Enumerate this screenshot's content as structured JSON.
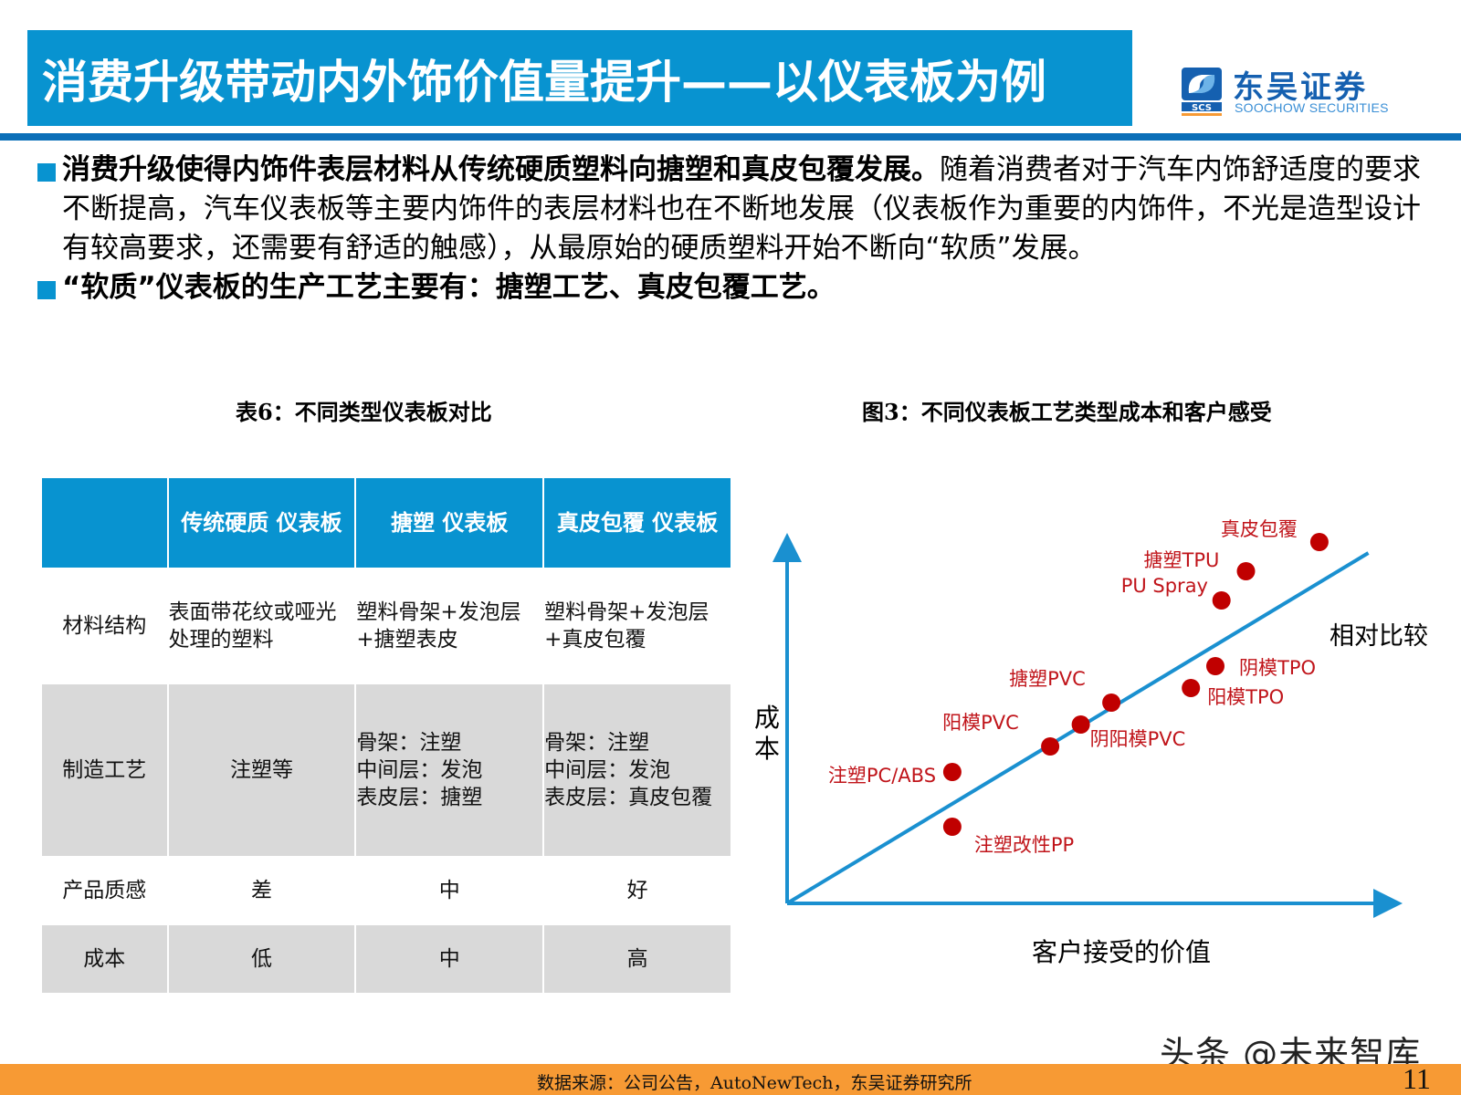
{
  "header": {
    "title": "消费升级带动内外饰价值量提升——以仪表板为例",
    "logo": {
      "name_cn": "东吴证券",
      "name_en": "SOOCHOW SECURITIES",
      "mark_text": "SCS"
    },
    "colors": {
      "title_bg": "#0893d0",
      "rule": "#0b6fb8",
      "logo": "#1560b0"
    }
  },
  "bullets": [
    {
      "bold": "消费升级使得内饰件表层材料从传统硬质塑料向搪塑和真皮包覆发展。",
      "text": "随着消费者对于汽车内饰舒适度的要求不断提高，汽车仪表板等主要内饰件的表层材料也在不断地发展（仪表板作为重要的内饰件，不光是造型设计有较高要求，还需要有舒适的触感），从最原始的硬质塑料开始不断向“软质”发展。"
    },
    {
      "bold": "“软质”仪表板的生产工艺主要有：搪塑工艺、真皮包覆工艺。",
      "text": ""
    }
  ],
  "table": {
    "caption": "表6：不同类型仪表板对比",
    "headers": [
      {
        "lines": [
          ""
        ]
      },
      {
        "lines": [
          "传统硬质",
          "仪表板"
        ]
      },
      {
        "lines": [
          "搪塑",
          "仪表板"
        ]
      },
      {
        "lines": [
          "真皮包覆",
          "仪表板"
        ]
      }
    ],
    "rows": [
      {
        "label": "材料结构",
        "cells": [
          [
            "表面带花纹或哑光",
            "处理的塑料"
          ],
          [
            "塑料骨架+发泡层",
            "+搪塑表皮"
          ],
          [
            "塑料骨架+发泡层",
            "+真皮包覆"
          ]
        ]
      },
      {
        "label": "制造工艺",
        "cells": [
          [
            "注塑等"
          ],
          [
            "骨架：注塑",
            "中间层：发泡",
            "表皮层：搪塑"
          ],
          [
            "骨架：注塑",
            "中间层：发泡",
            "表皮层：真皮包覆"
          ]
        ]
      },
      {
        "label": "产品质感",
        "cells": [
          [
            "差"
          ],
          [
            "中"
          ],
          [
            "好"
          ]
        ]
      },
      {
        "label": "成本",
        "cells": [
          [
            "低"
          ],
          [
            "中"
          ],
          [
            "高"
          ]
        ]
      }
    ]
  },
  "chart": {
    "caption": "图3：不同仪表板工艺类型成本和客户感受",
    "ylabel": "成本",
    "xlabel": "客户接受的价值",
    "trend_label": "相对比较"
  },
  "chart_data": {
    "type": "scatter",
    "title": "图3：不同仪表板工艺类型成本和客户感受",
    "xlabel": "客户接受的价值",
    "ylabel": "成本",
    "axis_ticks": "none (qualitative axes)",
    "grid": false,
    "xlim": [
      0,
      100
    ],
    "ylim": [
      0,
      100
    ],
    "trend_line": {
      "label": "相对比较",
      "from": [
        0,
        0
      ],
      "to": [
        95,
        96
      ]
    },
    "points": [
      {
        "label": "注塑改性PP",
        "x": 27,
        "y": 21
      },
      {
        "label": "注塑PC/ABS",
        "x": 27,
        "y": 36
      },
      {
        "label": "阳模PVC",
        "x": 43,
        "y": 43
      },
      {
        "label": "阴阳模PVC",
        "x": 48,
        "y": 49
      },
      {
        "label": "搪塑PVC",
        "x": 53,
        "y": 55
      },
      {
        "label": "阳模TPO",
        "x": 66,
        "y": 59
      },
      {
        "label": "阴模TPO",
        "x": 70,
        "y": 65
      },
      {
        "label": "PU Spray",
        "x": 71,
        "y": 83
      },
      {
        "label": "搪塑TPU",
        "x": 75,
        "y": 91
      },
      {
        "label": "真皮包覆",
        "x": 87,
        "y": 99
      }
    ],
    "colors": {
      "axes": "#1a90d0",
      "trend": "#1a90d0",
      "points": "#c00000",
      "labels": "#c0141a"
    }
  },
  "footer": {
    "source": "数据来源：公司公告，AutoNewTech，东吴证券研究所",
    "page": "11",
    "watermark": "头条 @未来智库",
    "colors": {
      "bar": "#f79a34"
    }
  }
}
